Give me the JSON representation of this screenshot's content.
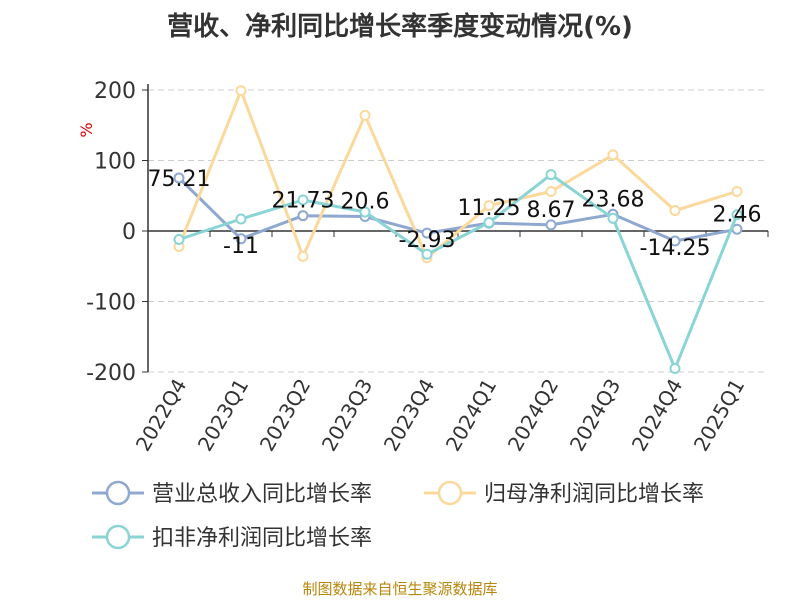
{
  "title": "营收、净利同比增长率季度变动情况(%)",
  "source": "制图数据来自恒生聚源数据库",
  "chart_data": {
    "type": "line",
    "title": "营收、净利同比增长率季度变动情况(%)",
    "ylabel": "%",
    "ylim": [
      -200,
      200
    ],
    "yticks": [
      200,
      100,
      0,
      -100,
      -200
    ],
    "categories": [
      "2022Q4",
      "2023Q1",
      "2023Q2",
      "2023Q3",
      "2023Q4",
      "2024Q1",
      "2024Q2",
      "2024Q3",
      "2024Q4",
      "2025Q1"
    ],
    "grid": true,
    "legend_position": "bottom",
    "series": [
      {
        "name": "营业总收入同比增长率",
        "color": "#8fa8d0",
        "values": [
          75.21,
          -11,
          21.73,
          20.6,
          -2.93,
          11.25,
          8.67,
          23.68,
          -14.25,
          2.46
        ],
        "labels": [
          "75.21",
          "-11",
          "21.73",
          "20.6",
          "-2.93",
          "11.25",
          "8.67",
          "23.68",
          "-14.25",
          "2.46"
        ]
      },
      {
        "name": "归母净利润同比增长率",
        "color": "#fbd89b",
        "values": [
          -22,
          199,
          -36,
          164,
          -38,
          36,
          56,
          108,
          29,
          56
        ]
      },
      {
        "name": "扣非净利润同比增长率",
        "color": "#8ad4d6",
        "values": [
          -12,
          17,
          44,
          27,
          -33,
          12,
          80,
          18,
          -195,
          23
        ]
      }
    ]
  }
}
